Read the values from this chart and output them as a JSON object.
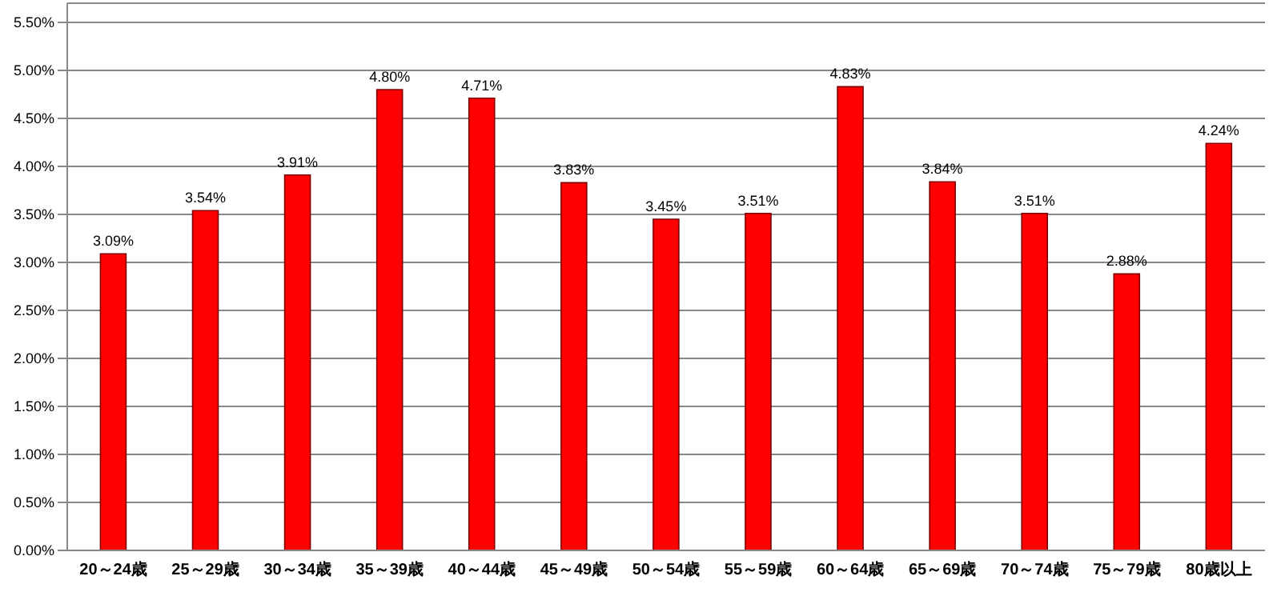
{
  "chart_data": {
    "type": "bar",
    "categories": [
      "20～24歳",
      "25～29歳",
      "30～34歳",
      "35～39歳",
      "40～44歳",
      "45～49歳",
      "50～54歳",
      "55～59歳",
      "60～64歳",
      "65～69歳",
      "70～74歳",
      "75～79歳",
      "80歳以上"
    ],
    "values": [
      3.09,
      3.54,
      3.91,
      4.8,
      4.71,
      3.83,
      3.45,
      3.51,
      4.83,
      3.84,
      3.51,
      2.88,
      4.24
    ],
    "value_labels": [
      "3.09%",
      "3.54%",
      "3.91%",
      "4.80%",
      "4.71%",
      "3.83%",
      "3.45%",
      "3.51%",
      "4.83%",
      "3.84%",
      "3.51%",
      "2.88%",
      "4.24%"
    ],
    "color": "#ff0000",
    "ylim": [
      0,
      5.7
    ],
    "yticks": [
      {
        "value": 0,
        "label": "0.00%"
      },
      {
        "value": 0.5,
        "label": "0.50%"
      },
      {
        "value": 1,
        "label": "1.00%"
      },
      {
        "value": 1.5,
        "label": "1.50%"
      },
      {
        "value": 2,
        "label": "2.00%"
      },
      {
        "value": 2.5,
        "label": "2.50%"
      },
      {
        "value": 3,
        "label": "3.00%"
      },
      {
        "value": 3.5,
        "label": "3.50%"
      },
      {
        "value": 4,
        "label": "4.00%"
      },
      {
        "value": 4.5,
        "label": "4.50%"
      },
      {
        "value": 5,
        "label": "5.00%"
      },
      {
        "value": 5.5,
        "label": "5.50%"
      }
    ],
    "grid": "y"
  }
}
